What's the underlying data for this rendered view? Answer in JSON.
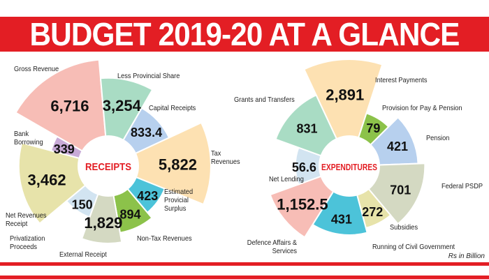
{
  "title": "BUDGET 2019-20 AT A GLANCE",
  "unit_note": "Rs in Billion",
  "chart_data": [
    {
      "type": "polar-area",
      "title": "RECEIPTS",
      "unit": "Rs in Billion",
      "categories": [
        "Gross Revenue",
        "Less Provincial Share",
        "Capital Receipts",
        "Tax Revenues",
        "Estimated Provicial Surplus",
        "Non-Tax Revenues",
        "External Receipt",
        "Privatization Proceeds",
        "Net Revenues Receipt",
        "Bank Borrowing"
      ],
      "values": [
        6716,
        3254,
        833.4,
        5822,
        423,
        894,
        1829,
        150,
        3462,
        339
      ],
      "value_labels": [
        "6,716",
        "3,254",
        "833.4",
        "5,822",
        "423",
        "894",
        "1,829",
        "150",
        "3,462",
        "339"
      ],
      "colors": [
        "#f7bdb6",
        "#a9dcc4",
        "#b7d0ee",
        "#fde1b2",
        "#4cc3d9",
        "#8cc24a",
        "#d4d9c2",
        "#d2e4f1",
        "#e7e3aa",
        "#c8aad7"
      ]
    },
    {
      "type": "polar-area",
      "title": "EXPENDITURES",
      "unit": "Rs in Billion",
      "categories": [
        "Interest Payments",
        "Provision for Pay & Pension",
        "Pension",
        "Federal PSDP",
        "Subsidies",
        "Running of Civil Government",
        "Defence Affairs & Services",
        "Net Lending",
        "Grants and Transfers"
      ],
      "values": [
        2891,
        79,
        421,
        701,
        272,
        431,
        1152.5,
        56.6,
        831
      ],
      "value_labels": [
        "2,891",
        "79",
        "421",
        "701",
        "272",
        "431",
        "1,152.5",
        "56.6",
        "831"
      ],
      "colors": [
        "#fde1b2",
        "#8cc24a",
        "#b7d0ee",
        "#d4d9c2",
        "#e7e3aa",
        "#4cc3d9",
        "#f7bdb6",
        "#d2e4f1",
        "#a9dcc4"
      ]
    }
  ]
}
